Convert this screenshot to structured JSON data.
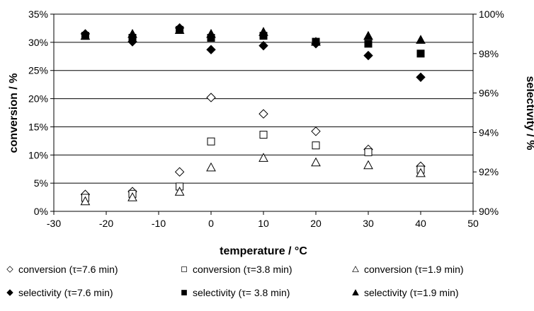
{
  "chart_data": {
    "type": "scatter",
    "xlabel": "temperature / °C",
    "ylabel_left": "conversion / %",
    "ylabel_right": "selectivity / %",
    "xlim": [
      -30,
      50
    ],
    "xticks": [
      -30,
      -20,
      -10,
      0,
      10,
      20,
      30,
      40,
      50
    ],
    "ylim_left": [
      0,
      35
    ],
    "yticks_left": [
      "0%",
      "5%",
      "10%",
      "15%",
      "20%",
      "25%",
      "30%",
      "35%"
    ],
    "ylim_right": [
      90,
      100
    ],
    "yticks_right": [
      "90%",
      "92%",
      "94%",
      "96%",
      "98%",
      "100%"
    ],
    "grid": "horizontal",
    "legend_position": "bottom",
    "series": [
      {
        "name": "conversion (τ=7.6 min)",
        "axis": "left",
        "marker": "diamond-open",
        "x": [
          -24,
          -15,
          -6,
          0,
          10,
          20,
          30,
          40
        ],
        "y": [
          3.0,
          3.5,
          7.0,
          20.2,
          17.3,
          14.2,
          11.0,
          8.0
        ]
      },
      {
        "name": "conversion (τ=3.8 min)",
        "axis": "left",
        "marker": "square-open",
        "x": [
          -24,
          -15,
          -6,
          0,
          10,
          20,
          30,
          40
        ],
        "y": [
          2.4,
          3.1,
          4.4,
          12.4,
          13.6,
          11.7,
          10.5,
          7.4
        ]
      },
      {
        "name": "conversion (τ=1.9 min)",
        "axis": "left",
        "marker": "triangle-open",
        "x": [
          -24,
          -15,
          -6,
          0,
          10,
          20,
          30,
          40
        ],
        "y": [
          1.8,
          2.5,
          3.5,
          7.8,
          9.5,
          8.7,
          8.2,
          6.8
        ]
      },
      {
        "name": "selectivity (τ=7.6 min)",
        "axis": "right",
        "marker": "diamond-filled",
        "x": [
          -24,
          -15,
          -6,
          0,
          10,
          20,
          30,
          40
        ],
        "y": [
          99.0,
          98.6,
          99.3,
          98.2,
          98.4,
          98.5,
          97.9,
          96.8
        ]
      },
      {
        "name": "selectivity (τ= 3.8 min)",
        "axis": "right",
        "marker": "square-filled",
        "x": [
          -24,
          -15,
          -6,
          0,
          10,
          20,
          30,
          40
        ],
        "y": [
          98.9,
          98.8,
          99.2,
          98.8,
          98.9,
          98.6,
          98.5,
          98.0
        ]
      },
      {
        "name": "selectivity (τ=1.9 min)",
        "axis": "right",
        "marker": "triangle-filled",
        "x": [
          -24,
          -15,
          -6,
          0,
          10,
          20,
          30,
          40
        ],
        "y": [
          98.9,
          99.0,
          99.2,
          99.0,
          99.1,
          98.6,
          98.9,
          98.7
        ]
      }
    ]
  }
}
